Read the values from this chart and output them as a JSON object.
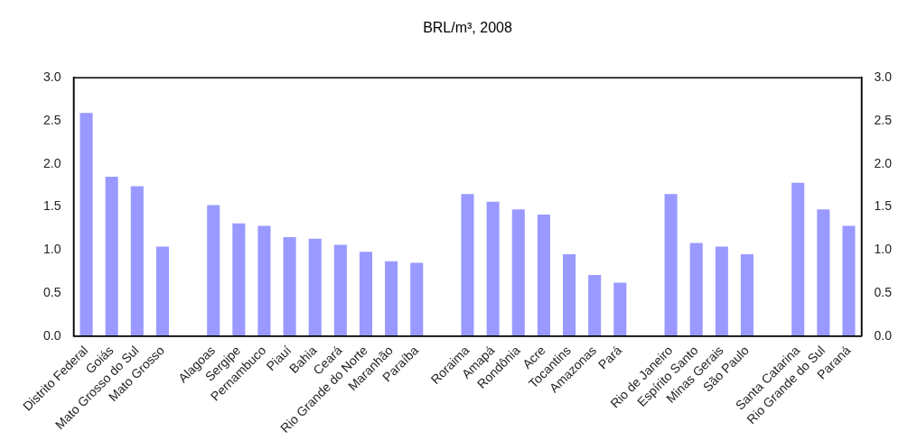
{
  "chart_data": {
    "type": "bar",
    "title": "BRL/m³, 2008",
    "categories": [
      "Distrito Federal",
      "Goiás",
      "Mato Grosso do Sul",
      "Mato Grosso",
      null,
      "Alagoas",
      "Sergipe",
      "Pernambuco",
      "Piauí",
      "Bahia",
      "Ceará",
      "Rio Grande do Norte",
      "Maranhão",
      "Paraíba",
      null,
      "Roraima",
      "Amapá",
      "Rondônia",
      "Acre",
      "Tocantins",
      "Amazonas",
      "Pará",
      null,
      "Rio de Janeiro",
      "Espírito Santo",
      "Minas Gerais",
      "São Paulo",
      null,
      "Santa Catarina",
      "Rio Grande do Sul",
      "Paraná"
    ],
    "values": [
      2.59,
      1.85,
      1.74,
      1.04,
      null,
      1.52,
      1.31,
      1.28,
      1.15,
      1.13,
      1.06,
      0.98,
      0.87,
      0.85,
      null,
      1.65,
      1.56,
      1.47,
      1.41,
      0.95,
      0.71,
      0.62,
      null,
      1.65,
      1.08,
      1.04,
      0.95,
      null,
      1.78,
      1.47,
      1.28
    ],
    "color": "#9999ff",
    "ylim": [
      0,
      3
    ],
    "yticks": [
      {
        "value": 0,
        "label": "0.0"
      },
      {
        "value": 0.5,
        "label": "0.5"
      },
      {
        "value": 1,
        "label": "1.0"
      },
      {
        "value": 1.5,
        "label": "1.5"
      },
      {
        "value": 2,
        "label": "2.0"
      },
      {
        "value": 2.5,
        "label": "2.5"
      },
      {
        "value": 3,
        "label": "3.0"
      }
    ],
    "y2lim": [
      0,
      3
    ],
    "y2ticks": [
      {
        "value": 0,
        "label": "0.0"
      },
      {
        "value": 0.5,
        "label": "0.5"
      },
      {
        "value": 1,
        "label": "1.0"
      },
      {
        "value": 1.5,
        "label": "1.5"
      },
      {
        "value": 2,
        "label": "2.0"
      },
      {
        "value": 2.5,
        "label": "2.5"
      },
      {
        "value": 3,
        "label": "3.0"
      }
    ]
  }
}
